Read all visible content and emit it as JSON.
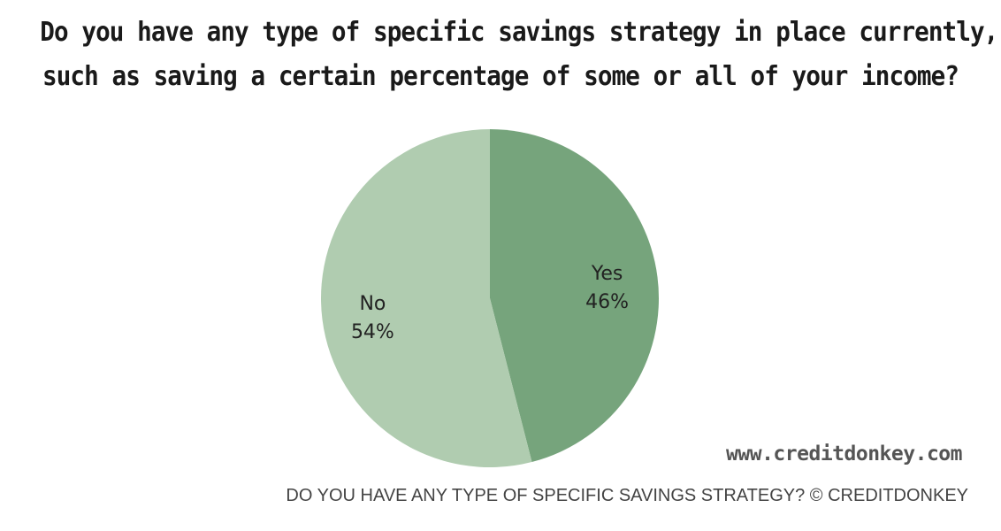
{
  "chart_data": {
    "type": "pie",
    "title_lines": [
      "Do you have any type of specific savings strategy in place currently,",
      "such as saving a certain percentage of some or all of your income?"
    ],
    "slices": [
      {
        "label": "Yes",
        "value": 46,
        "value_label": "46%",
        "color": "#76a47c"
      },
      {
        "label": "No",
        "value": 54,
        "value_label": "54%",
        "color": "#b0ccb0"
      }
    ],
    "start_angle_deg": 0,
    "direction": "clockwise"
  },
  "watermark": "www.creditdonkey.com",
  "caption": "DO YOU HAVE ANY TYPE OF SPECIFIC SAVINGS STRATEGY? © CREDITDONKEY"
}
